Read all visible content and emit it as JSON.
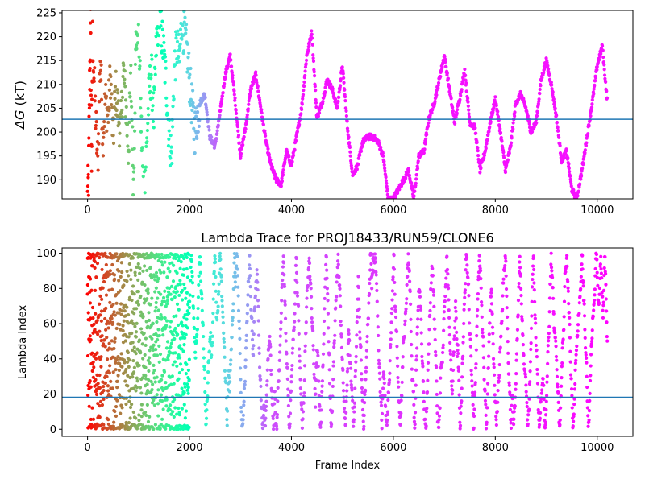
{
  "chart_data": [
    {
      "type": "scatter",
      "title": "",
      "xlabel": "",
      "ylabel_math": "ΔG",
      "ylabel_unit": " (kT)",
      "xlim": [
        -500,
        10700
      ],
      "ylim": [
        186,
        225.5
      ],
      "xticks": [
        0,
        2000,
        4000,
        6000,
        8000,
        10000
      ],
      "xtick_labels": [
        "0",
        "2000",
        "4000",
        "6000",
        "8000",
        "10000"
      ],
      "yticks": [
        190,
        195,
        200,
        205,
        210,
        215,
        220,
        225
      ],
      "ytick_labels": [
        "190",
        "195",
        "200",
        "205",
        "210",
        "215",
        "220",
        "225"
      ],
      "hline": 202.7,
      "hline_color": "#1f77b4",
      "colormap": "rainbow",
      "color_by": "lambda_stage_order",
      "series": [
        {
          "x": [
            0,
            20,
            40,
            60,
            80,
            100,
            150,
            200,
            250,
            300,
            350,
            400,
            450,
            500,
            550,
            600,
            650,
            700,
            750,
            800,
            850,
            900,
            950,
            1000,
            1050,
            1100,
            1150,
            1200,
            1250,
            1300,
            1350,
            1400,
            1450,
            1500,
            1550,
            1600,
            1650,
            1700,
            1750,
            1800,
            1850,
            1900,
            1950,
            2000,
            2100,
            2200,
            2300,
            2400,
            2500,
            2600,
            2700,
            2800,
            2900,
            3000,
            3100,
            3200,
            3300,
            3400,
            3500,
            3600,
            3700,
            3800,
            3900,
            4000,
            4100,
            4200,
            4300,
            4400,
            4500,
            4600,
            4700,
            4800,
            4900,
            5000,
            5100,
            5200,
            5300,
            5400,
            5500,
            5600,
            5700,
            5800,
            5900,
            6000,
            6100,
            6200,
            6300,
            6400,
            6500,
            6600,
            6700,
            6800,
            6900,
            7000,
            7100,
            7200,
            7300,
            7400,
            7500,
            7600,
            7700,
            7800,
            7900,
            8000,
            8100,
            8200,
            8300,
            8400,
            8500,
            8600,
            8700,
            8800,
            8900,
            9000,
            9100,
            9200,
            9300,
            9400,
            9500,
            9600,
            9700,
            9800,
            9900,
            10000,
            10100,
            10200
          ],
          "y": [
            186,
            190,
            210,
            222,
            194,
            220,
            205,
            193,
            216,
            199,
            207,
            203,
            212,
            198,
            209,
            204,
            200,
            213,
            206,
            196,
            211,
            189,
            219,
            224,
            202,
            187,
            195,
            207,
            213,
            203,
            218,
            225,
            221,
            216,
            209,
            199,
            195,
            213,
            218,
            215,
            224,
            220,
            217,
            211,
            200,
            206,
            208,
            199,
            197,
            204,
            212,
            216,
            206,
            195,
            201,
            209,
            212,
            205,
            198,
            193,
            190,
            189,
            196,
            193,
            199,
            205,
            216,
            221,
            203,
            206,
            211,
            209,
            205,
            214,
            201,
            191,
            193,
            198,
            199,
            199,
            198,
            195,
            186,
            186,
            188,
            190,
            192,
            186,
            195,
            196,
            203,
            206,
            211,
            216,
            209,
            202,
            207,
            213,
            202,
            201,
            192,
            196,
            202,
            207,
            200,
            192,
            197,
            206,
            208,
            205,
            200,
            202,
            211,
            215,
            210,
            203,
            194,
            196,
            188,
            186,
            192,
            199,
            206,
            214,
            218,
            206
          ]
        }
      ]
    },
    {
      "type": "scatter",
      "title": "Lambda Trace for PROJ18433/RUN59/CLONE6",
      "xlabel": "Frame Index",
      "ylabel": "Lambda Index",
      "xlim": [
        -500,
        10700
      ],
      "ylim": [
        -4,
        103
      ],
      "xticks": [
        0,
        2000,
        4000,
        6000,
        8000,
        10000
      ],
      "xtick_labels": [
        "0",
        "2000",
        "4000",
        "6000",
        "8000",
        "10000"
      ],
      "yticks": [
        0,
        20,
        40,
        60,
        80,
        100
      ],
      "ytick_labels": [
        "0",
        "20",
        "40",
        "60",
        "80",
        "100"
      ],
      "hline": 18.2,
      "hline_color": "#1f77b4",
      "colormap": "rainbow",
      "color_by": "frame_order",
      "note_distribution": "Lambda values sweep between 0 and 100; dense bands of points per frame block",
      "series": [
        {
          "x_range": [
            0,
            10200
          ],
          "y_range": [
            0,
            100
          ]
        }
      ]
    }
  ]
}
